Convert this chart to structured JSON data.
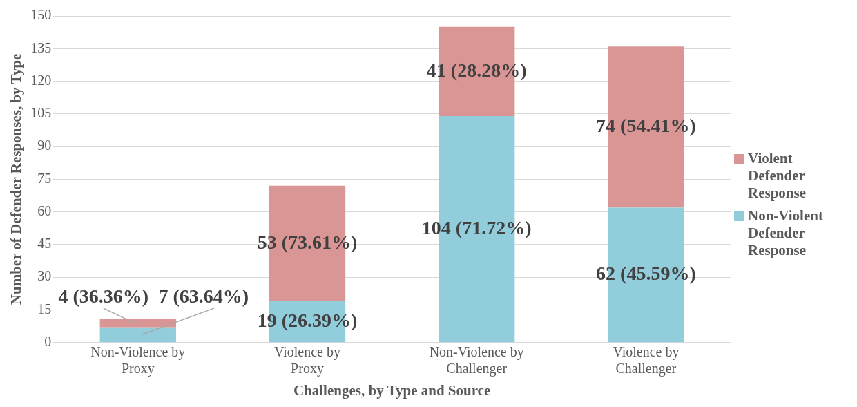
{
  "chart_data": {
    "type": "bar",
    "stacked": true,
    "xlabel": "Challenges, by Type and Source",
    "ylabel": "Number of Defender Responses, by Type",
    "categories": [
      "Non-Violence by Proxy",
      "Violence by Proxy",
      "Non-Violence by Challenger",
      "Violence by Challenger"
    ],
    "series": [
      {
        "name": "Non-Violent Defender Response",
        "color": "#92cddc",
        "values": [
          7,
          19,
          104,
          62
        ],
        "value_labels": [
          "7 (63.64%)",
          "19 (26.39%)",
          "104 (71.72%)",
          "62 (45.59%)"
        ]
      },
      {
        "name": "Violent Defender Response",
        "color": "#d99694",
        "values": [
          4,
          53,
          41,
          74
        ],
        "value_labels": [
          "4 (36.36%)",
          "53 (73.61%)",
          "41 (28.28%)",
          "74 (54.41%)"
        ]
      }
    ],
    "ylim": [
      0,
      150
    ],
    "yticks": [
      0,
      15,
      30,
      45,
      60,
      75,
      90,
      105,
      120,
      135,
      150
    ],
    "grid": "y",
    "legend": "right"
  }
}
